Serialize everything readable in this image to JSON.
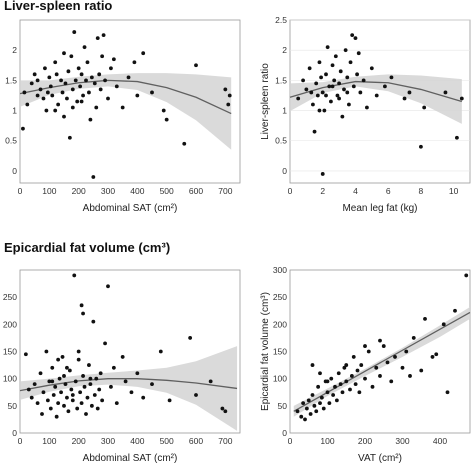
{
  "headings": {
    "top": "Liver-spleen ratio",
    "bottom": "Epicardial fat volume (cm³)"
  },
  "colors": {
    "point": "#111111",
    "fit": "#606060",
    "band": "#d4d4d4"
  },
  "chart_data": [
    {
      "type": "scatter",
      "xlabel": "Abdominal SAT (cm²)",
      "ylabel": "",
      "xlim": [
        0,
        750
      ],
      "ylim": [
        -0.2,
        2.5
      ],
      "xticks": [
        "0",
        "100",
        "200",
        "300",
        "400",
        "500",
        "600",
        "700"
      ],
      "yticks": [
        "0",
        "0.5",
        "1",
        "1.5",
        "2"
      ],
      "fit": "quadratic with confidence band",
      "points": [
        [
          10,
          0.7
        ],
        [
          15,
          1.3
        ],
        [
          25,
          1.1
        ],
        [
          40,
          1.45
        ],
        [
          50,
          1.6
        ],
        [
          60,
          1.5
        ],
        [
          70,
          1.35
        ],
        [
          80,
          1.2
        ],
        [
          85,
          1.7
        ],
        [
          90,
          1.0
        ],
        [
          100,
          1.55
        ],
        [
          105,
          1.4
        ],
        [
          110,
          1.25
        ],
        [
          120,
          1.8
        ],
        [
          125,
          1.6
        ],
        [
          130,
          1.1
        ],
        [
          140,
          1.5
        ],
        [
          145,
          1.3
        ],
        [
          150,
          1.95
        ],
        [
          155,
          1.45
        ],
        [
          160,
          1.2
        ],
        [
          165,
          1.65
        ],
        [
          170,
          0.55
        ],
        [
          175,
          1.9
        ],
        [
          180,
          1.35
        ],
        [
          185,
          2.3
        ],
        [
          190,
          1.5
        ],
        [
          195,
          1.15
        ],
        [
          200,
          1.7
        ],
        [
          205,
          1.4
        ],
        [
          210,
          1.6
        ],
        [
          215,
          1.25
        ],
        [
          220,
          2.05
        ],
        [
          225,
          1.5
        ],
        [
          230,
          1.8
        ],
        [
          235,
          1.3
        ],
        [
          240,
          0.85
        ],
        [
          245,
          1.55
        ],
        [
          250,
          -0.1
        ],
        [
          255,
          1.45
        ],
        [
          260,
          1.05
        ],
        [
          265,
          2.2
        ],
        [
          270,
          1.6
        ],
        [
          275,
          1.35
        ],
        [
          280,
          1.9
        ],
        [
          285,
          2.25
        ],
        [
          290,
          1.5
        ],
        [
          300,
          1.2
        ],
        [
          310,
          1.7
        ],
        [
          320,
          1.85
        ],
        [
          330,
          1.4
        ],
        [
          350,
          1.05
        ],
        [
          370,
          1.55
        ],
        [
          390,
          1.8
        ],
        [
          400,
          1.25
        ],
        [
          420,
          1.95
        ],
        [
          450,
          1.3
        ],
        [
          490,
          1.0
        ],
        [
          500,
          0.85
        ],
        [
          560,
          0.45
        ],
        [
          600,
          1.75
        ],
        [
          700,
          1.35
        ],
        [
          710,
          1.1
        ],
        [
          715,
          1.25
        ],
        [
          150,
          0.9
        ],
        [
          180,
          1.05
        ],
        [
          210,
          1.15
        ],
        [
          120,
          1.0
        ],
        [
          95,
          1.3
        ],
        [
          60,
          1.25
        ]
      ],
      "fit_curve": [
        [
          0,
          1.28
        ],
        [
          100,
          1.38
        ],
        [
          200,
          1.46
        ],
        [
          300,
          1.5
        ],
        [
          400,
          1.48
        ],
        [
          500,
          1.38
        ],
        [
          600,
          1.22
        ],
        [
          720,
          0.95
        ]
      ],
      "band_upper": [
        [
          0,
          1.5
        ],
        [
          100,
          1.5
        ],
        [
          200,
          1.56
        ],
        [
          300,
          1.6
        ],
        [
          400,
          1.62
        ],
        [
          500,
          1.62
        ],
        [
          600,
          1.6
        ],
        [
          720,
          1.55
        ]
      ],
      "band_lower": [
        [
          0,
          1.06
        ],
        [
          100,
          1.26
        ],
        [
          200,
          1.36
        ],
        [
          300,
          1.4
        ],
        [
          400,
          1.34
        ],
        [
          500,
          1.14
        ],
        [
          600,
          0.84
        ],
        [
          720,
          0.35
        ]
      ]
    },
    {
      "type": "scatter",
      "xlabel": "Mean leg fat (kg)",
      "ylabel": "Liver-spleen ratio",
      "xlim": [
        0,
        11
      ],
      "ylim": [
        -0.2,
        2.5
      ],
      "xticks": [
        "0",
        "2",
        "4",
        "6",
        "8",
        "10"
      ],
      "yticks": [
        "0",
        "0.5",
        "1",
        "1.5",
        "2",
        "2.5"
      ],
      "fit": "quadratic with confidence band",
      "points": [
        [
          0.5,
          1.2
        ],
        [
          0.8,
          1.5
        ],
        [
          1.0,
          1.35
        ],
        [
          1.2,
          1.7
        ],
        [
          1.4,
          1.1
        ],
        [
          1.5,
          0.65
        ],
        [
          1.6,
          1.45
        ],
        [
          1.7,
          1.25
        ],
        [
          1.8,
          1.8
        ],
        [
          1.9,
          1.55
        ],
        [
          2.0,
          1.3
        ],
        [
          2.0,
          -0.05
        ],
        [
          2.1,
          1.0
        ],
        [
          2.2,
          1.6
        ],
        [
          2.3,
          2.05
        ],
        [
          2.4,
          1.4
        ],
        [
          2.5,
          1.15
        ],
        [
          2.6,
          1.75
        ],
        [
          2.7,
          1.5
        ],
        [
          2.8,
          1.9
        ],
        [
          2.9,
          1.25
        ],
        [
          3.0,
          1.45
        ],
        [
          3.1,
          1.65
        ],
        [
          3.2,
          0.9
        ],
        [
          3.3,
          1.35
        ],
        [
          3.4,
          2.0
        ],
        [
          3.5,
          1.55
        ],
        [
          3.6,
          1.1
        ],
        [
          3.7,
          1.8
        ],
        [
          3.8,
          2.25
        ],
        [
          3.9,
          1.4
        ],
        [
          4.0,
          2.2
        ],
        [
          4.1,
          1.6
        ],
        [
          4.2,
          1.95
        ],
        [
          4.3,
          1.3
        ],
        [
          4.5,
          1.5
        ],
        [
          4.7,
          1.05
        ],
        [
          5.0,
          1.7
        ],
        [
          5.3,
          1.25
        ],
        [
          5.8,
          1.4
        ],
        [
          6.2,
          1.55
        ],
        [
          7.0,
          1.2
        ],
        [
          7.3,
          1.3
        ],
        [
          8.0,
          0.4
        ],
        [
          8.2,
          1.05
        ],
        [
          9.5,
          1.3
        ],
        [
          10.2,
          0.55
        ],
        [
          10.5,
          1.2
        ],
        [
          1.3,
          1.3
        ],
        [
          2.2,
          1.25
        ],
        [
          3.0,
          1.2
        ],
        [
          2.6,
          1.4
        ],
        [
          3.5,
          1.3
        ],
        [
          1.8,
          1.0
        ]
      ],
      "fit_curve": [
        [
          0,
          1.22
        ],
        [
          2,
          1.38
        ],
        [
          4,
          1.48
        ],
        [
          6,
          1.46
        ],
        [
          8,
          1.35
        ],
        [
          10.5,
          1.15
        ]
      ],
      "band_upper": [
        [
          0,
          1.45
        ],
        [
          2,
          1.47
        ],
        [
          4,
          1.56
        ],
        [
          6,
          1.6
        ],
        [
          8,
          1.58
        ],
        [
          10.5,
          1.52
        ]
      ],
      "band_lower": [
        [
          0,
          0.99
        ],
        [
          2,
          1.29
        ],
        [
          4,
          1.4
        ],
        [
          6,
          1.32
        ],
        [
          8,
          1.12
        ],
        [
          10.5,
          0.78
        ]
      ]
    },
    {
      "type": "scatter",
      "xlabel": "Abdominal SAT (cm²)",
      "ylabel": "",
      "xlim": [
        0,
        750
      ],
      "ylim": [
        0,
        300
      ],
      "xticks": [
        "0",
        "100",
        "200",
        "300",
        "400",
        "500",
        "600",
        "700"
      ],
      "yticks": [
        "0",
        "50",
        "100",
        "150",
        "200",
        "250"
      ],
      "fit": "quadratic with confidence band",
      "points": [
        [
          20,
          145
        ],
        [
          30,
          80
        ],
        [
          40,
          65
        ],
        [
          50,
          90
        ],
        [
          60,
          55
        ],
        [
          70,
          110
        ],
        [
          75,
          35
        ],
        [
          80,
          75
        ],
        [
          90,
          150
        ],
        [
          95,
          60
        ],
        [
          100,
          95
        ],
        [
          105,
          45
        ],
        [
          110,
          120
        ],
        [
          115,
          70
        ],
        [
          120,
          85
        ],
        [
          125,
          30
        ],
        [
          130,
          55
        ],
        [
          135,
          100
        ],
        [
          140,
          75
        ],
        [
          145,
          140
        ],
        [
          150,
          50
        ],
        [
          155,
          90
        ],
        [
          160,
          65
        ],
        [
          165,
          40
        ],
        [
          170,
          115
        ],
        [
          175,
          80
        ],
        [
          180,
          60
        ],
        [
          185,
          290
        ],
        [
          190,
          95
        ],
        [
          195,
          45
        ],
        [
          200,
          135
        ],
        [
          205,
          75
        ],
        [
          210,
          55
        ],
        [
          215,
          105
        ],
        [
          220,
          85
        ],
        [
          225,
          35
        ],
        [
          230,
          65
        ],
        [
          235,
          125
        ],
        [
          240,
          90
        ],
        [
          245,
          50
        ],
        [
          250,
          205
        ],
        [
          255,
          70
        ],
        [
          260,
          100
        ],
        [
          265,
          45
        ],
        [
          270,
          80
        ],
        [
          275,
          110
        ],
        [
          280,
          60
        ],
        [
          290,
          165
        ],
        [
          300,
          270
        ],
        [
          310,
          85
        ],
        [
          320,
          120
        ],
        [
          330,
          55
        ],
        [
          350,
          140
        ],
        [
          360,
          95
        ],
        [
          380,
          75
        ],
        [
          400,
          110
        ],
        [
          420,
          65
        ],
        [
          450,
          90
        ],
        [
          480,
          150
        ],
        [
          510,
          60
        ],
        [
          580,
          175
        ],
        [
          600,
          70
        ],
        [
          650,
          95
        ],
        [
          690,
          45
        ],
        [
          700,
          40
        ],
        [
          210,
          235
        ],
        [
          215,
          220
        ],
        [
          200,
          150
        ],
        [
          160,
          120
        ],
        [
          130,
          135
        ],
        [
          240,
          100
        ],
        [
          180,
          70
        ],
        [
          150,
          105
        ],
        [
          110,
          95
        ]
      ],
      "fit_curve": [
        [
          0,
          78
        ],
        [
          100,
          88
        ],
        [
          200,
          96
        ],
        [
          300,
          100
        ],
        [
          400,
          100
        ],
        [
          500,
          97
        ],
        [
          600,
          92
        ],
        [
          740,
          82
        ]
      ],
      "band_upper": [
        [
          0,
          95
        ],
        [
          100,
          100
        ],
        [
          200,
          106
        ],
        [
          300,
          111
        ],
        [
          400,
          115
        ],
        [
          500,
          120
        ],
        [
          600,
          132
        ],
        [
          740,
          160
        ]
      ],
      "band_lower": [
        [
          0,
          61
        ],
        [
          100,
          76
        ],
        [
          200,
          86
        ],
        [
          300,
          89
        ],
        [
          400,
          85
        ],
        [
          500,
          74
        ],
        [
          600,
          52
        ],
        [
          740,
          4
        ]
      ]
    },
    {
      "type": "scatter",
      "xlabel": "VAT (cm²)",
      "ylabel": "Epicardial fat volume (cm³)",
      "xlim": [
        0,
        480
      ],
      "ylim": [
        0,
        300
      ],
      "xticks": [
        "0",
        "100",
        "200",
        "300",
        "400"
      ],
      "yticks": [
        "0",
        "50",
        "100",
        "150",
        "200",
        "250",
        "300"
      ],
      "fit": "linear with confidence band",
      "points": [
        [
          20,
          40
        ],
        [
          30,
          30
        ],
        [
          35,
          55
        ],
        [
          40,
          25
        ],
        [
          45,
          45
        ],
        [
          50,
          60
        ],
        [
          55,
          35
        ],
        [
          60,
          70
        ],
        [
          65,
          50
        ],
        [
          70,
          40
        ],
        [
          75,
          85
        ],
        [
          80,
          55
        ],
        [
          85,
          65
        ],
        [
          90,
          45
        ],
        [
          95,
          95
        ],
        [
          100,
          75
        ],
        [
          105,
          55
        ],
        [
          110,
          100
        ],
        [
          115,
          70
        ],
        [
          120,
          85
        ],
        [
          125,
          60
        ],
        [
          130,
          110
        ],
        [
          135,
          90
        ],
        [
          140,
          75
        ],
        [
          145,
          120
        ],
        [
          150,
          95
        ],
        [
          160,
          80
        ],
        [
          165,
          105
        ],
        [
          170,
          140
        ],
        [
          175,
          90
        ],
        [
          180,
          115
        ],
        [
          185,
          75
        ],
        [
          190,
          125
        ],
        [
          200,
          100
        ],
        [
          210,
          150
        ],
        [
          220,
          85
        ],
        [
          230,
          120
        ],
        [
          240,
          105
        ],
        [
          250,
          160
        ],
        [
          260,
          130
        ],
        [
          270,
          95
        ],
        [
          280,
          140
        ],
        [
          300,
          120
        ],
        [
          310,
          150
        ],
        [
          320,
          105
        ],
        [
          330,
          175
        ],
        [
          350,
          115
        ],
        [
          360,
          210
        ],
        [
          380,
          140
        ],
        [
          390,
          145
        ],
        [
          410,
          200
        ],
        [
          420,
          75
        ],
        [
          440,
          225
        ],
        [
          470,
          290
        ],
        [
          60,
          125
        ],
        [
          80,
          110
        ],
        [
          100,
          95
        ],
        [
          150,
          125
        ],
        [
          200,
          160
        ],
        [
          240,
          170
        ]
      ],
      "fit_curve": [
        [
          10,
          40
        ],
        [
          480,
          222
        ]
      ],
      "band_upper": [
        [
          10,
          50
        ],
        [
          100,
          82
        ],
        [
          200,
          118
        ],
        [
          300,
          157
        ],
        [
          400,
          198
        ],
        [
          480,
          232
        ]
      ],
      "band_lower": [
        [
          10,
          30
        ],
        [
          100,
          68
        ],
        [
          200,
          105
        ],
        [
          300,
          140
        ],
        [
          400,
          177
        ],
        [
          480,
          210
        ]
      ]
    }
  ]
}
